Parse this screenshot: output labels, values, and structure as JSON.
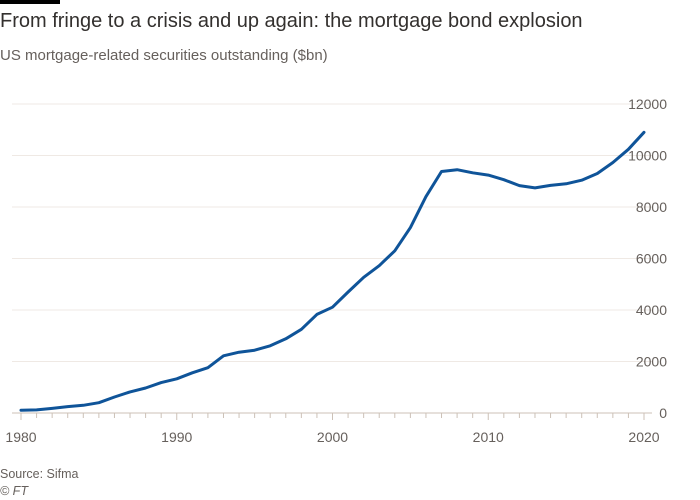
{
  "header": {
    "title": "From fringe to a crisis and up again: the mortgage bond explosion",
    "subtitle": "US mortgage-related securities outstanding ($bn)"
  },
  "footer": {
    "source": "Source: Sifma",
    "copyright": "© FT"
  },
  "chart_data": {
    "type": "line",
    "title": "From fringe to a crisis and up again: the mortgage bond explosion",
    "ylabel": "US mortgage-related securities outstanding ($bn)",
    "xlabel": "",
    "xlim": [
      1980,
      2020
    ],
    "ylim": [
      0,
      12000
    ],
    "xticks": [
      1980,
      1990,
      2000,
      2010,
      2020
    ],
    "yticks": [
      0,
      2000,
      4000,
      6000,
      8000,
      10000,
      12000
    ],
    "grid": true,
    "color": "#0f5499",
    "x": [
      1980,
      1981,
      1982,
      1983,
      1984,
      1985,
      1986,
      1987,
      1988,
      1989,
      1990,
      1991,
      1992,
      1993,
      1994,
      1995,
      1996,
      1997,
      1998,
      1999,
      2000,
      2001,
      2002,
      2003,
      2004,
      2005,
      2006,
      2007,
      2008,
      2009,
      2010,
      2011,
      2012,
      2013,
      2014,
      2015,
      2016,
      2017,
      2018,
      2019,
      2020
    ],
    "values": [
      110,
      120,
      180,
      250,
      300,
      400,
      620,
      820,
      970,
      1180,
      1330,
      1560,
      1760,
      2220,
      2360,
      2440,
      2610,
      2880,
      3250,
      3830,
      4110,
      4700,
      5270,
      5720,
      6300,
      7200,
      8400,
      9380,
      9450,
      9330,
      9240,
      9060,
      8830,
      8740,
      8840,
      8900,
      9040,
      9300,
      9730,
      10240,
      10900
    ]
  }
}
